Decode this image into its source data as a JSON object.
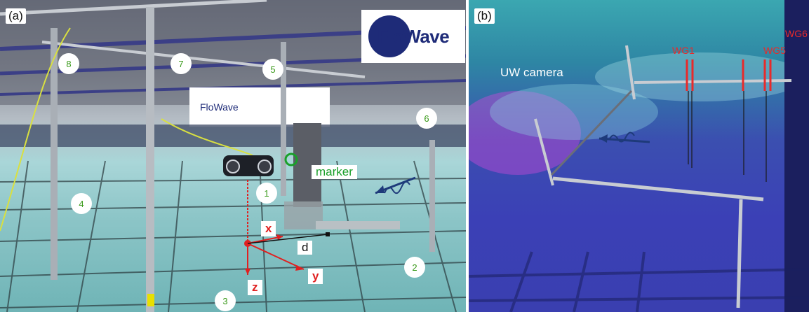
{
  "panel_a": {
    "tag": "(a)",
    "logo_text": "FloWave",
    "circle_numbers": [
      "1",
      "2",
      "3",
      "4",
      "5",
      "6",
      "7",
      "8"
    ],
    "marker_label": "marker",
    "axis_x": "x",
    "axis_y": "y",
    "axis_z": "z",
    "distance_label": "d"
  },
  "panel_b": {
    "tag": "(b)",
    "camera_label": "UW camera",
    "wave_gauges": [
      "WG1",
      "WG5",
      "WG6"
    ]
  },
  "colors": {
    "circle_text": "#3a9a1a",
    "axis_red": "#e02020",
    "marker_green": "#1aa02a",
    "gauge_red": "#e82a2a",
    "wave_arrow": "#1e3a7a"
  }
}
